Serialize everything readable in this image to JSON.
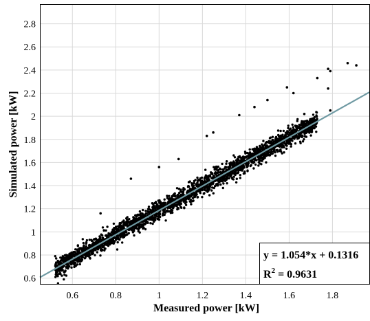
{
  "chart_data": {
    "type": "scatter",
    "xlabel": "Measured power [kW]",
    "ylabel": "Simulated power [kW]",
    "xlim": [
      0.45,
      1.97
    ],
    "ylim": [
      0.55,
      2.97
    ],
    "xticks": [
      0.6,
      0.8,
      1,
      1.2,
      1.4,
      1.6,
      1.8
    ],
    "xtick_labels": [
      "0.6",
      "0.8",
      "1",
      "1.2",
      "1.4",
      "1.6",
      "1.8"
    ],
    "yticks": [
      0.6,
      0.8,
      1,
      1.2,
      1.4,
      1.6,
      1.8,
      2,
      2.2,
      2.4,
      2.6,
      2.8
    ],
    "ytick_labels": [
      "0.6",
      "0.8",
      "1",
      "1.2",
      "1.4",
      "1.6",
      "1.8",
      "2",
      "2.2",
      "2.4",
      "2.6",
      "2.8"
    ],
    "grid": true,
    "marker_color": "#000000",
    "fit_line": {
      "slope": 1.054,
      "intercept": 0.1316,
      "color": "#6f9aa3"
    },
    "equation_label": "y = 1.054*x + 0.1316",
    "r2_label_prefix": "R",
    "r2_label_sup": "2",
    "r2_label_value": " = 0.9631",
    "r2": 0.9631,
    "point_cloud": {
      "x_range": [
        0.52,
        1.73
      ],
      "residual_sd_kW": 0.04,
      "approx_points": 2600
    },
    "outliers": [
      {
        "x": 1.87,
        "y": 2.46
      },
      {
        "x": 1.91,
        "y": 2.44
      },
      {
        "x": 1.78,
        "y": 2.41
      },
      {
        "x": 1.79,
        "y": 2.39
      },
      {
        "x": 1.73,
        "y": 2.33
      },
      {
        "x": 1.59,
        "y": 2.25
      },
      {
        "x": 1.62,
        "y": 2.2
      },
      {
        "x": 1.78,
        "y": 2.24
      },
      {
        "x": 1.5,
        "y": 2.14
      },
      {
        "x": 1.44,
        "y": 2.08
      },
      {
        "x": 1.79,
        "y": 2.05
      },
      {
        "x": 1.37,
        "y": 2.01
      },
      {
        "x": 1.0,
        "y": 1.56
      },
      {
        "x": 0.87,
        "y": 1.46
      },
      {
        "x": 1.25,
        "y": 1.86
      },
      {
        "x": 1.22,
        "y": 1.83
      },
      {
        "x": 1.09,
        "y": 1.63
      },
      {
        "x": 0.73,
        "y": 1.16
      },
      {
        "x": 1.55,
        "y": 1.77
      },
      {
        "x": 1.67,
        "y": 2.02
      }
    ]
  }
}
